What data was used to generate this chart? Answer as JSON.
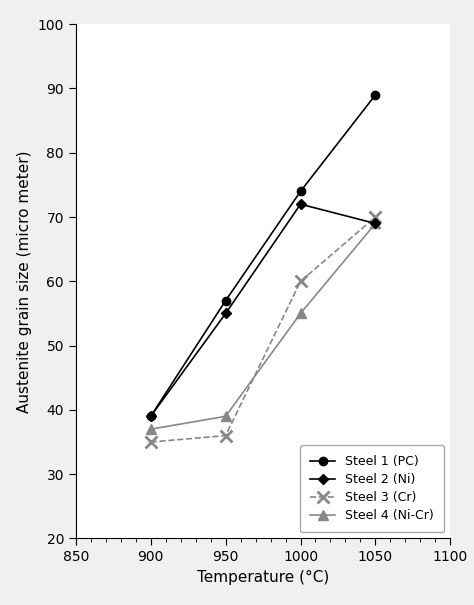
{
  "title": "",
  "xlabel": "Temperature (°C)",
  "ylabel": "Austenite grain size (micro meter)",
  "xlim": [
    850,
    1100
  ],
  "ylim": [
    20,
    100
  ],
  "xticks": [
    850,
    900,
    950,
    1000,
    1050,
    1100
  ],
  "yticks": [
    20,
    30,
    40,
    50,
    60,
    70,
    80,
    90,
    100
  ],
  "series": [
    {
      "label": "Steel 1 (PC)",
      "x": [
        900,
        950,
        1000,
        1050
      ],
      "y": [
        39,
        57,
        74,
        89
      ],
      "color": "#000000",
      "marker": "o",
      "markersize": 6,
      "linewidth": 1.2,
      "linestyle": "-",
      "markerfacecolor": "#000000",
      "zorder": 4
    },
    {
      "label": "Steel 2 (Ni)",
      "x": [
        900,
        950,
        1000,
        1050
      ],
      "y": [
        39,
        55,
        72,
        69
      ],
      "color": "#000000",
      "marker": "D",
      "markersize": 5,
      "linewidth": 1.2,
      "linestyle": "-",
      "markerfacecolor": "#000000",
      "zorder": 3
    },
    {
      "label": "Steel 3 (Cr)",
      "x": [
        900,
        950,
        1000,
        1050
      ],
      "y": [
        35,
        36,
        60,
        70
      ],
      "color": "#888888",
      "marker": "x",
      "markersize": 8,
      "linewidth": 1.2,
      "linestyle": "--",
      "markerfacecolor": "none",
      "markeredgewidth": 2,
      "zorder": 2
    },
    {
      "label": "Steel 4 (Ni-Cr)",
      "x": [
        900,
        950,
        1000,
        1050
      ],
      "y": [
        37,
        39,
        55,
        69
      ],
      "color": "#888888",
      "marker": "^",
      "markersize": 7,
      "linewidth": 1.2,
      "linestyle": "-",
      "markerfacecolor": "#888888",
      "zorder": 2
    }
  ],
  "legend_loc": "lower right",
  "legend_fontsize": 9,
  "figsize": [
    4.74,
    6.05
  ],
  "dpi": 100,
  "bg_color": "#f0f0f0",
  "plot_bg_color": "#ffffff"
}
